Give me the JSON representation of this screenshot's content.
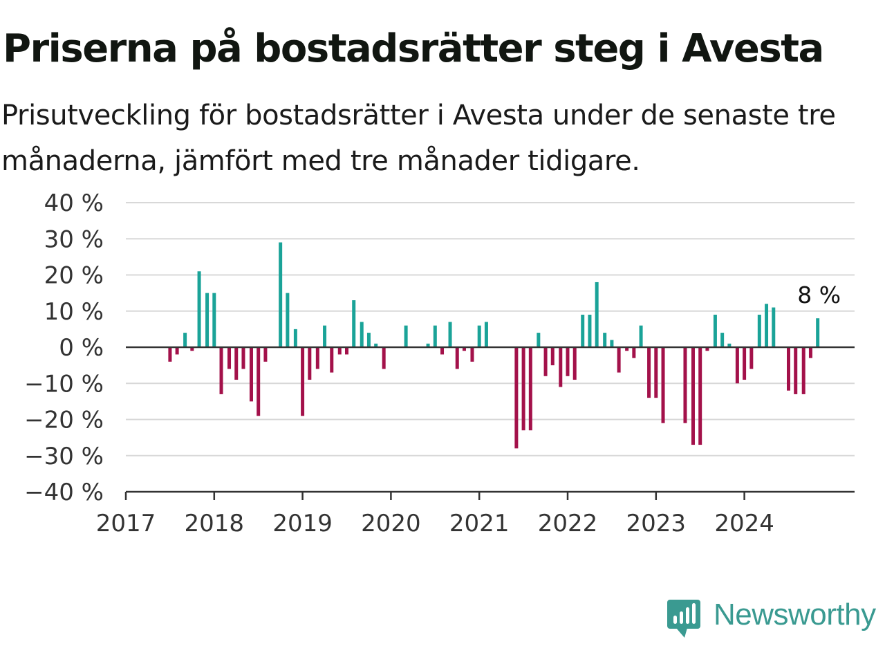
{
  "title": "Priserna på bostadsrätter steg i Avesta",
  "subtitle": "Prisutveckling för bostadsrätter i Avesta under de senaste tre månaderna, jämfört med tre månader tidigare.",
  "brand": {
    "name": "Newsworthy",
    "color": "#3a9a91",
    "icon": "newsworthy-logo-icon"
  },
  "colors": {
    "positive": "#1aa398",
    "negative": "#a3114a",
    "grid": "#d8d8d8",
    "axis": "#333333"
  },
  "chart_data": {
    "type": "bar",
    "x_unit": "year (decimal, monthly bars)",
    "x_range": [
      2017.0,
      2025.25
    ],
    "ylim": [
      -40,
      40
    ],
    "yticks": [
      40,
      30,
      20,
      10,
      0,
      -10,
      -20,
      -30,
      -40
    ],
    "ytick_labels": [
      "40 %",
      "30 %",
      "20 %",
      "10 %",
      "0 %",
      "−10 %",
      "−20 %",
      "−30 %",
      "−40 %"
    ],
    "xticks": [
      2017,
      2018,
      2019,
      2020,
      2021,
      2022,
      2023,
      2024
    ],
    "xtick_labels": [
      "2017",
      "2018",
      "2019",
      "2020",
      "2021",
      "2022",
      "2023",
      "2024"
    ],
    "grid": true,
    "xlabel": "",
    "ylabel": "",
    "annotation": {
      "text": "8 %",
      "x": 2024.83,
      "value": 8
    },
    "series": [
      {
        "x": [
          2017.5,
          2017.58,
          2017.67,
          2017.75,
          2017.83,
          2017.92,
          2018.0,
          2018.08,
          2018.17,
          2018.25,
          2018.33,
          2018.42,
          2018.5,
          2018.58,
          2018.75,
          2018.83,
          2018.92,
          2019.0,
          2019.08,
          2019.17,
          2019.25,
          2019.33,
          2019.42,
          2019.5,
          2019.58,
          2019.67,
          2019.75,
          2019.83,
          2019.92,
          2020.17,
          2020.42,
          2020.5,
          2020.58,
          2020.67,
          2020.75,
          2020.83,
          2020.92,
          2021.0,
          2021.08,
          2021.42,
          2021.5,
          2021.58,
          2021.67,
          2021.75,
          2021.83,
          2021.92,
          2022.0,
          2022.08,
          2022.17,
          2022.25,
          2022.33,
          2022.42,
          2022.5,
          2022.58,
          2022.67,
          2022.75,
          2022.83,
          2022.92,
          2023.0,
          2023.08,
          2023.33,
          2023.42,
          2023.5,
          2023.58,
          2023.67,
          2023.75,
          2023.83,
          2023.92,
          2024.0,
          2024.08,
          2024.17,
          2024.25,
          2024.33,
          2024.5,
          2024.58,
          2024.67,
          2024.75,
          2024.83
        ],
        "values": [
          -4,
          -2,
          4,
          -1,
          21,
          15,
          15,
          -13,
          -6,
          -9,
          -6,
          -15,
          -19,
          -4,
          29,
          15,
          5,
          -19,
          -9,
          -6,
          6,
          -7,
          -2,
          -2,
          13,
          7,
          4,
          1,
          -6,
          6,
          1,
          6,
          -2,
          7,
          -6,
          -1,
          -4,
          6,
          7,
          -28,
          -23,
          -23,
          4,
          -8,
          -5,
          -11,
          -8,
          -9,
          9,
          9,
          18,
          4,
          2,
          -7,
          -1,
          -3,
          6,
          -14,
          -14,
          -21,
          -21,
          -27,
          -27,
          -1,
          9,
          4,
          1,
          -10,
          -9,
          -6,
          9,
          12,
          11,
          -12,
          -13,
          -13,
          -3,
          8
        ]
      }
    ]
  }
}
